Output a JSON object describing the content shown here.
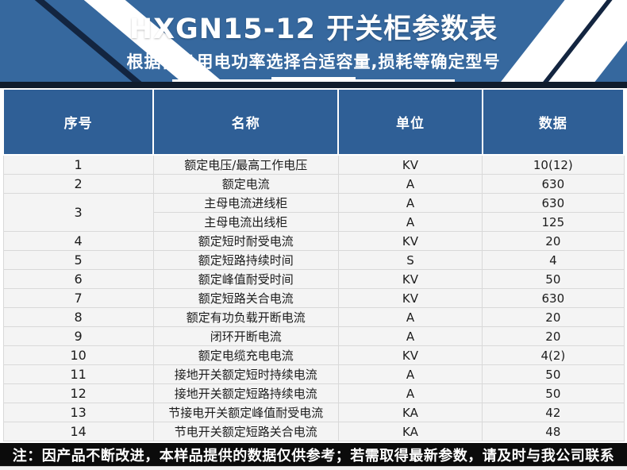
{
  "banner": {
    "title": "HXGN15-12 开关柜参数表",
    "subtitle": "根据自身用电功率选择合适容量,损耗等确定型号",
    "background_color": "#36689e",
    "stripe_color": "#ffffff",
    "accent_dark_color": "#132540"
  },
  "table": {
    "header_background_color": "#2f5f96",
    "row_background_color": "#f4f4f4",
    "columns": [
      "序号",
      "名称",
      "单位",
      "数据"
    ],
    "rows": [
      {
        "no": "1",
        "name": "额定电压/最高工作电压",
        "unit": "KV",
        "value": "10(12)"
      },
      {
        "no": "2",
        "name": "额定电流",
        "unit": "A",
        "value": "630"
      },
      {
        "no": "3",
        "sub_rows": [
          {
            "name": "主母电流进线柜",
            "unit": "A",
            "value": "630"
          },
          {
            "name": "主母电流出线柜",
            "unit": "A",
            "value": "125"
          }
        ]
      },
      {
        "no": "4",
        "name": "额定短时耐受电流",
        "unit": "KV",
        "value": "20"
      },
      {
        "no": "5",
        "name": "额定短路持续时间",
        "unit": "S",
        "value": "4"
      },
      {
        "no": "6",
        "name": "额定峰值耐受时间",
        "unit": "KV",
        "value": "50"
      },
      {
        "no": "7",
        "name": "额定短路关合电流",
        "unit": "KV",
        "value": "630"
      },
      {
        "no": "8",
        "name": "额定有功负载开断电流",
        "unit": "A",
        "value": "20"
      },
      {
        "no": "9",
        "name": "闭环开断电流",
        "unit": "A",
        "value": "20"
      },
      {
        "no": "10",
        "name": "额定电缆充电电流",
        "unit": "KV",
        "value": "4(2)"
      },
      {
        "no": "11",
        "name": "接地开关额定短时持续电流",
        "unit": "A",
        "value": "50"
      },
      {
        "no": "12",
        "name": "接地开关额定短路持续电流",
        "unit": "A",
        "value": "50"
      },
      {
        "no": "13",
        "name": "节接电开关额定峰值耐受电流",
        "unit": "KA",
        "value": "42"
      },
      {
        "no": "14",
        "name": "节电开关额定短路关合电流",
        "unit": "KA",
        "value": "48"
      }
    ]
  },
  "footer": {
    "note": "注：因产品不断改进，本样品提供的数据仅供参考；若需取得最新参数，请及时与我公司联系",
    "background_color": "#0b0b0b"
  }
}
